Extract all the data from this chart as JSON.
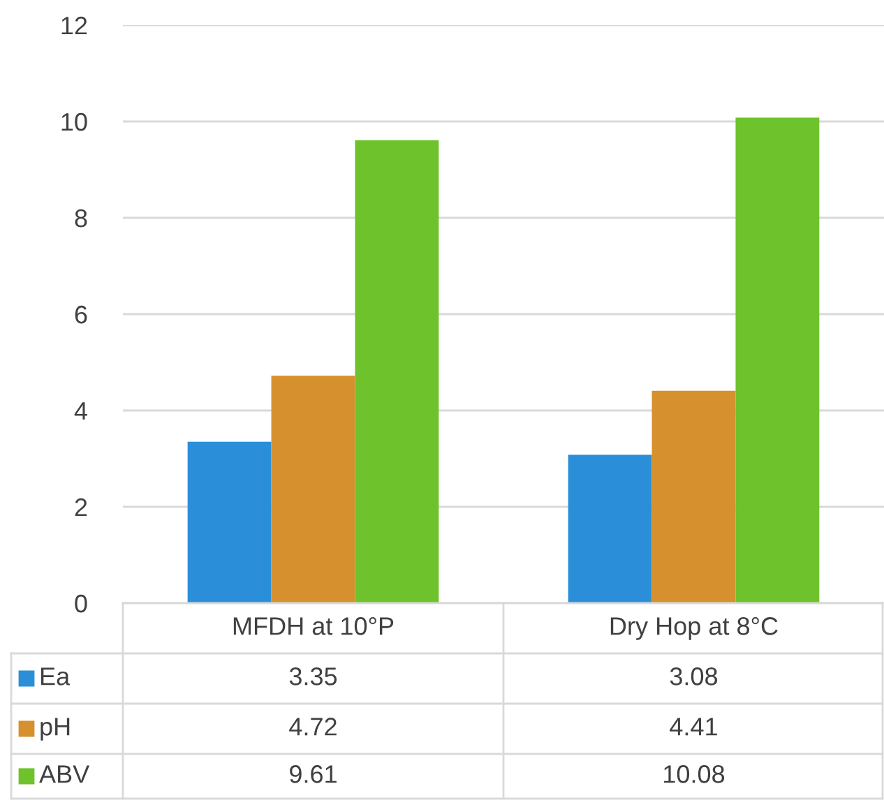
{
  "chart_data": {
    "type": "bar",
    "categories": [
      "MFDH at 10°P",
      "Dry Hop at 8°C"
    ],
    "series": [
      {
        "name": "Ea",
        "color": "#2a8fd8",
        "values": [
          3.35,
          3.08
        ]
      },
      {
        "name": "pH",
        "color": "#d6902e",
        "values": [
          4.72,
          4.41
        ]
      },
      {
        "name": "ABV",
        "color": "#6ec22c",
        "values": [
          9.61,
          10.08
        ]
      }
    ],
    "ylim": [
      0,
      12
    ],
    "yticks": [
      0,
      2,
      4,
      6,
      8,
      10,
      12
    ],
    "grid": "y",
    "data_labels": true,
    "legend": "bottom"
  }
}
